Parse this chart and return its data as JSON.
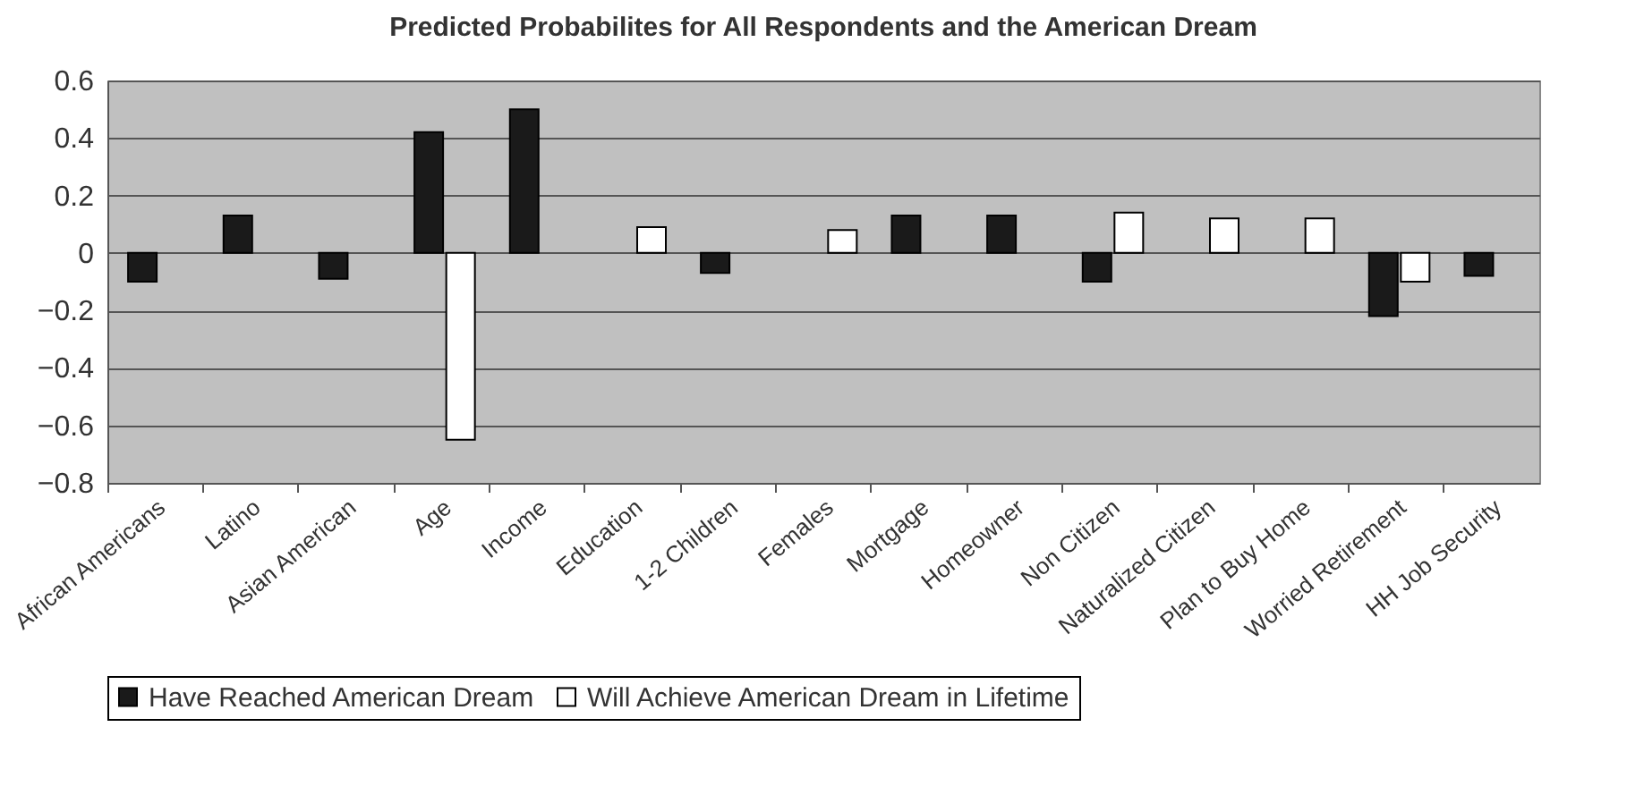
{
  "chart_data": {
    "type": "bar",
    "title": "Predicted Probabilites for All Respondents and the American Dream",
    "categories": [
      "African Americans",
      "Latino",
      "Asian American",
      "Age",
      "Income",
      "Education",
      "1-2 Children",
      "Females",
      "Mortgage",
      "Homeowner",
      "Non Citizen",
      "Naturalized Citizen",
      "Plan to Buy Home",
      "Worried Retirement",
      "HH Job Security"
    ],
    "series": [
      {
        "name": "Have Reached American Dream",
        "color": "#1a1a1a",
        "values": [
          -0.1,
          0.13,
          -0.09,
          0.42,
          0.5,
          null,
          -0.07,
          null,
          0.13,
          0.13,
          -0.1,
          null,
          null,
          -0.22,
          -0.08
        ]
      },
      {
        "name": "Will Achieve American Dream in Lifetime",
        "color": "#ffffff",
        "values": [
          null,
          null,
          null,
          -0.65,
          null,
          0.09,
          null,
          0.08,
          null,
          null,
          0.14,
          0.12,
          0.12,
          -0.1,
          null
        ]
      }
    ],
    "ylim": [
      -0.8,
      0.6
    ],
    "yticks": [
      -0.8,
      -0.6,
      -0.4,
      -0.2,
      0,
      0.2,
      0.4,
      0.6
    ],
    "grid": "y",
    "legend": "bottom"
  }
}
